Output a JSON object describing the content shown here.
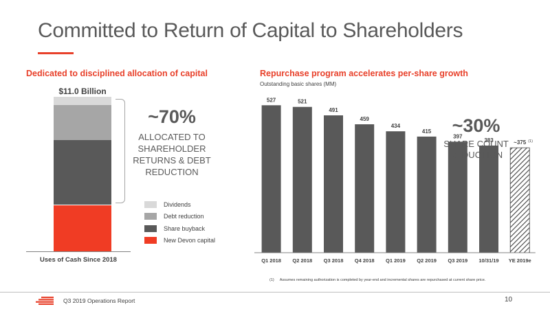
{
  "title": "Committed to Return of Capital to Shareholders",
  "left_panel": {
    "heading": "Dedicated to disciplined allocation of capital",
    "total_label": "$11.0 Billion",
    "x_label": "Uses of Cash Since 2018",
    "big_percent": "~70%",
    "percent_text": "ALLOCATED TO SHAREHOLDER RETURNS & DEBT REDUCTION",
    "legend": [
      {
        "label": "Dividends",
        "color": "#d9d9d9"
      },
      {
        "label": "Debt reduction",
        "color": "#a6a6a6"
      },
      {
        "label": "Share buyback",
        "color": "#595959"
      },
      {
        "label": "New Devon capital",
        "color": "#f03c24"
      }
    ]
  },
  "right_panel": {
    "heading": "Repurchase program accelerates per-share growth",
    "subtitle": "Outstanding basic shares (MM)",
    "big_percent": "~30%",
    "percent_text": "SHARE COUNT REDUCTION",
    "footnote_marker": "(1)",
    "footnote_text": "Assumes remaining authorization is completed by year-end and incremental shares are repurchased at current share price."
  },
  "chart_data": [
    {
      "type": "bar",
      "stacked": true,
      "categories": [
        "Uses of Cash Since 2018"
      ],
      "total": 11.0,
      "unit": "$ Billion",
      "series": [
        {
          "name": "New Devon capital",
          "values": [
            3.3
          ],
          "color": "#f03c24"
        },
        {
          "name": "Share buyback",
          "values": [
            4.6
          ],
          "color": "#595959"
        },
        {
          "name": "Debt reduction",
          "values": [
            2.5
          ],
          "color": "#a6a6a6"
        },
        {
          "name": "Dividends",
          "values": [
            0.6
          ],
          "color": "#d9d9d9"
        }
      ]
    },
    {
      "type": "bar",
      "categories": [
        "Q1 2018",
        "Q2 2018",
        "Q3 2018",
        "Q4 2018",
        "Q1 2019",
        "Q2 2019",
        "Q3 2019",
        "10/31/19",
        "YE 2019e"
      ],
      "values": [
        527,
        521,
        491,
        459,
        434,
        415,
        397,
        383,
        375
      ],
      "value_labels": [
        "527",
        "521",
        "491",
        "459",
        "434",
        "415",
        "397",
        "383",
        "~375"
      ],
      "estimate_index": 8,
      "estimate_marker": "(1)",
      "ylim": [
        0,
        540
      ],
      "bar_color": "#595959"
    }
  ],
  "footer": {
    "report_name": "Q3 2019 Operations Report",
    "page_number": "10"
  }
}
